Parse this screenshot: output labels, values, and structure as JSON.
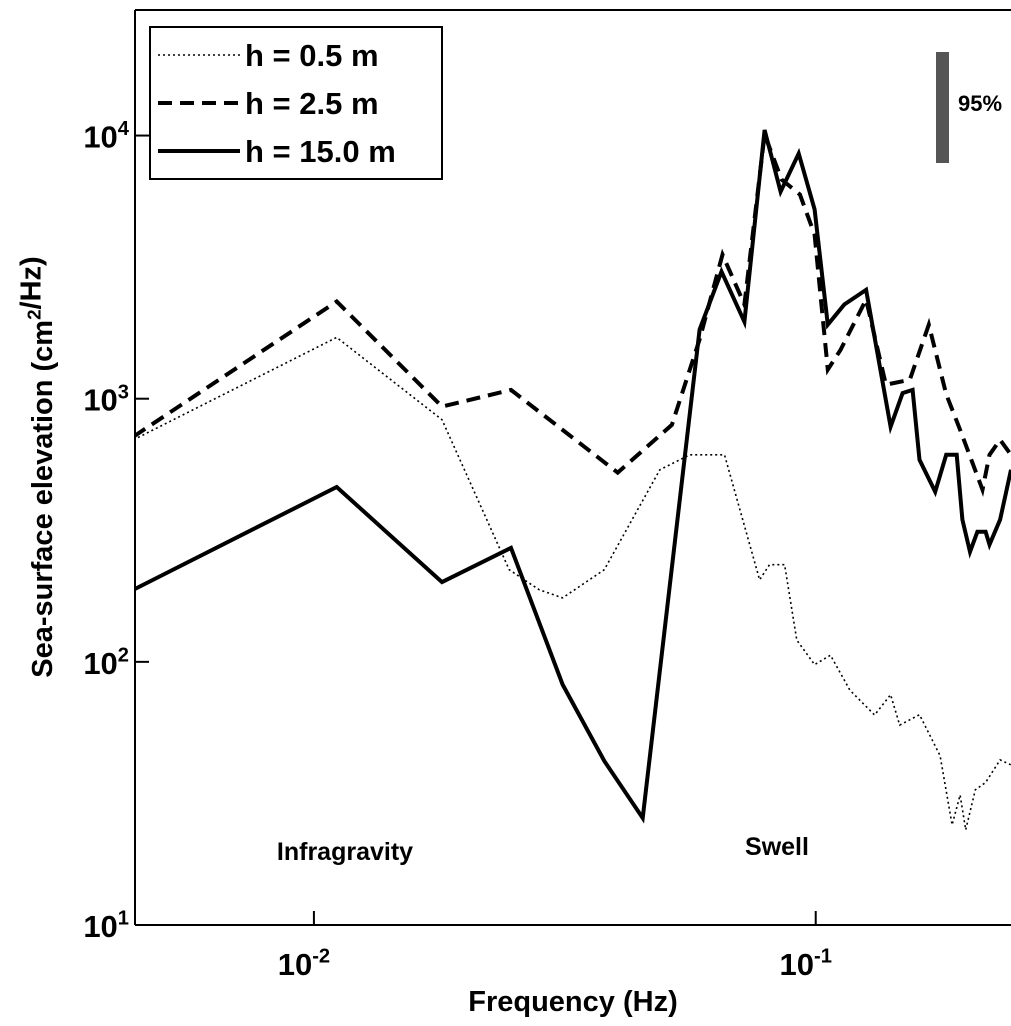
{
  "chart_data": {
    "type": "line",
    "xlabel": "Frequency (Hz)",
    "ylabel": "Sea-surface elevation (cm^2/Hz)",
    "xscale": "log",
    "yscale": "log",
    "xlim": [
      0.0044,
      0.245
    ],
    "ylim": [
      10,
      30000
    ],
    "xticks": [
      {
        "value": 0.01,
        "label": "10^-2"
      },
      {
        "value": 0.1,
        "label": "10^-1"
      }
    ],
    "yticks": [
      {
        "value": 10,
        "label": "10^1"
      },
      {
        "value": 100,
        "label": "10^2"
      },
      {
        "value": 1000,
        "label": "10^3"
      },
      {
        "value": 10000,
        "label": "10^4"
      }
    ],
    "legend": "upper left",
    "annotations": [
      "Infragravity",
      "Swell",
      "95%"
    ],
    "series": [
      {
        "name": "h = 0.5 m",
        "color": "#000000",
        "style": "dotted",
        "x": [
          0.00437,
          0.0111,
          0.018,
          0.0245,
          0.0281,
          0.0313,
          0.0379,
          0.0489,
          0.0561,
          0.0658,
          0.0773,
          0.0809,
          0.0867,
          0.0917,
          0.0995,
          0.107,
          0.117,
          0.131,
          0.141,
          0.147,
          0.161,
          0.177,
          0.187,
          0.194,
          0.199,
          0.208,
          0.218,
          0.233,
          0.245
        ],
        "values": [
          698,
          1710,
          832,
          224,
          188,
          175,
          224,
          537,
          612,
          612,
          205,
          234,
          234,
          121,
          97.6,
          106,
          78,
          62.8,
          75,
          57.5,
          63,
          44,
          24,
          31.2,
          23,
          32.6,
          34.8,
          42.4,
          40.6
        ]
      },
      {
        "name": "h = 2.5 m",
        "color": "#000000",
        "style": "dashed",
        "x": [
          0.00437,
          0.0111,
          0.018,
          0.0247,
          0.0403,
          0.0517,
          0.0587,
          0.0652,
          0.0721,
          0.0791,
          0.0855,
          0.093,
          0.0995,
          0.1057,
          0.112,
          0.126,
          0.138,
          0.154,
          0.168,
          0.182,
          0.194,
          0.215,
          0.222,
          0.233,
          0.245
        ],
        "values": [
          718,
          2340,
          933,
          1080,
          524,
          796,
          1680,
          3530,
          2280,
          10100,
          6800,
          5970,
          4200,
          1290,
          1530,
          2380,
          1130,
          1180,
          1910,
          1040,
          762,
          451,
          612,
          698,
          612
        ]
      },
      {
        "name": "h = 15.0 m",
        "color": "#000000",
        "style": "solid",
        "x": [
          0.00437,
          0.0111,
          0.018,
          0.0247,
          0.0313,
          0.0379,
          0.0452,
          0.0587,
          0.0649,
          0.0721,
          0.0791,
          0.0851,
          0.0925,
          0.0995,
          0.1057,
          0.114,
          0.126,
          0.141,
          0.149,
          0.156,
          0.161,
          0.173,
          0.182,
          0.191,
          0.196,
          0.203,
          0.21,
          0.218,
          0.222,
          0.233,
          0.245
        ],
        "values": [
          188,
          462,
          201,
          271,
          82,
          42,
          25.5,
          1830,
          3040,
          1960,
          10500,
          6120,
          8550,
          5240,
          1910,
          2280,
          2590,
          783,
          1050,
          1080,
          586,
          443,
          612,
          612,
          347,
          262,
          312,
          312,
          279,
          347,
          537
        ]
      }
    ]
  }
}
